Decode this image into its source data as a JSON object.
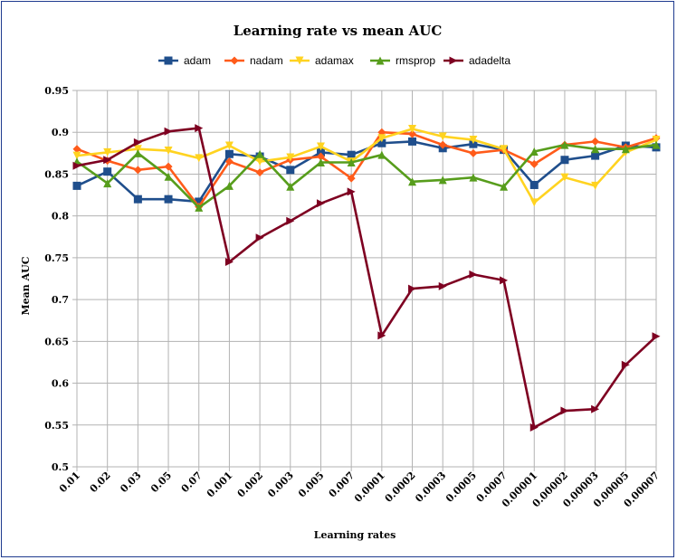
{
  "chart_data": {
    "type": "line",
    "title": "Learning rate vs mean AUC",
    "xlabel": "Learning rates",
    "ylabel": "Mean AUC",
    "ylim": [
      0.5,
      0.95
    ],
    "yticks": [
      "0.5",
      "0.55",
      "0.6",
      "0.65",
      "0.7",
      "0.75",
      "0.8",
      "0.85",
      "0.9",
      "0.95"
    ],
    "grid": true,
    "legend_position": "top",
    "categories": [
      "0.01",
      "0.02",
      "0.03",
      "0.05",
      "0.07",
      "0.001",
      "0.002",
      "0.003",
      "0.005",
      "0.007",
      "0.0001",
      "0.0002",
      "0.0003",
      "0.0005",
      "0.0007",
      "0.00001",
      "0.00002",
      "0.00003",
      "0.00005",
      "0.00007"
    ],
    "series": [
      {
        "name": "adam",
        "color": "#1f4e8c",
        "marker": "square",
        "values": [
          0.836,
          0.853,
          0.82,
          0.82,
          0.817,
          0.874,
          0.871,
          0.855,
          0.876,
          0.873,
          0.887,
          0.889,
          0.881,
          0.886,
          0.879,
          0.837,
          0.867,
          0.872,
          0.884,
          0.882
        ]
      },
      {
        "name": "nadam",
        "color": "#ff5b1a",
        "marker": "diamond",
        "values": [
          0.88,
          0.866,
          0.855,
          0.859,
          0.811,
          0.865,
          0.852,
          0.867,
          0.871,
          0.845,
          0.9,
          0.898,
          0.885,
          0.875,
          0.879,
          0.862,
          0.885,
          0.889,
          0.882,
          0.893
        ]
      },
      {
        "name": "adamax",
        "color": "#ffd320",
        "marker": "triangle-down",
        "values": [
          0.872,
          0.876,
          0.88,
          0.878,
          0.869,
          0.884,
          0.865,
          0.87,
          0.883,
          0.865,
          0.893,
          0.904,
          0.895,
          0.891,
          0.88,
          0.816,
          0.846,
          0.836,
          0.876,
          0.891
        ]
      },
      {
        "name": "rmsprop",
        "color": "#579d1c",
        "marker": "triangle-up",
        "values": [
          0.865,
          0.839,
          0.875,
          0.847,
          0.81,
          0.836,
          0.874,
          0.835,
          0.864,
          0.864,
          0.873,
          0.841,
          0.843,
          0.846,
          0.835,
          0.877,
          0.885,
          0.88,
          0.88,
          0.885
        ]
      },
      {
        "name": "adadelta",
        "color": "#7e0021",
        "marker": "triangle-right",
        "values": [
          0.86,
          0.867,
          0.888,
          0.901,
          0.905,
          0.745,
          0.774,
          0.794,
          0.815,
          0.829,
          0.657,
          0.713,
          0.716,
          0.73,
          0.723,
          0.547,
          0.567,
          0.569,
          0.622,
          0.656
        ]
      }
    ]
  }
}
